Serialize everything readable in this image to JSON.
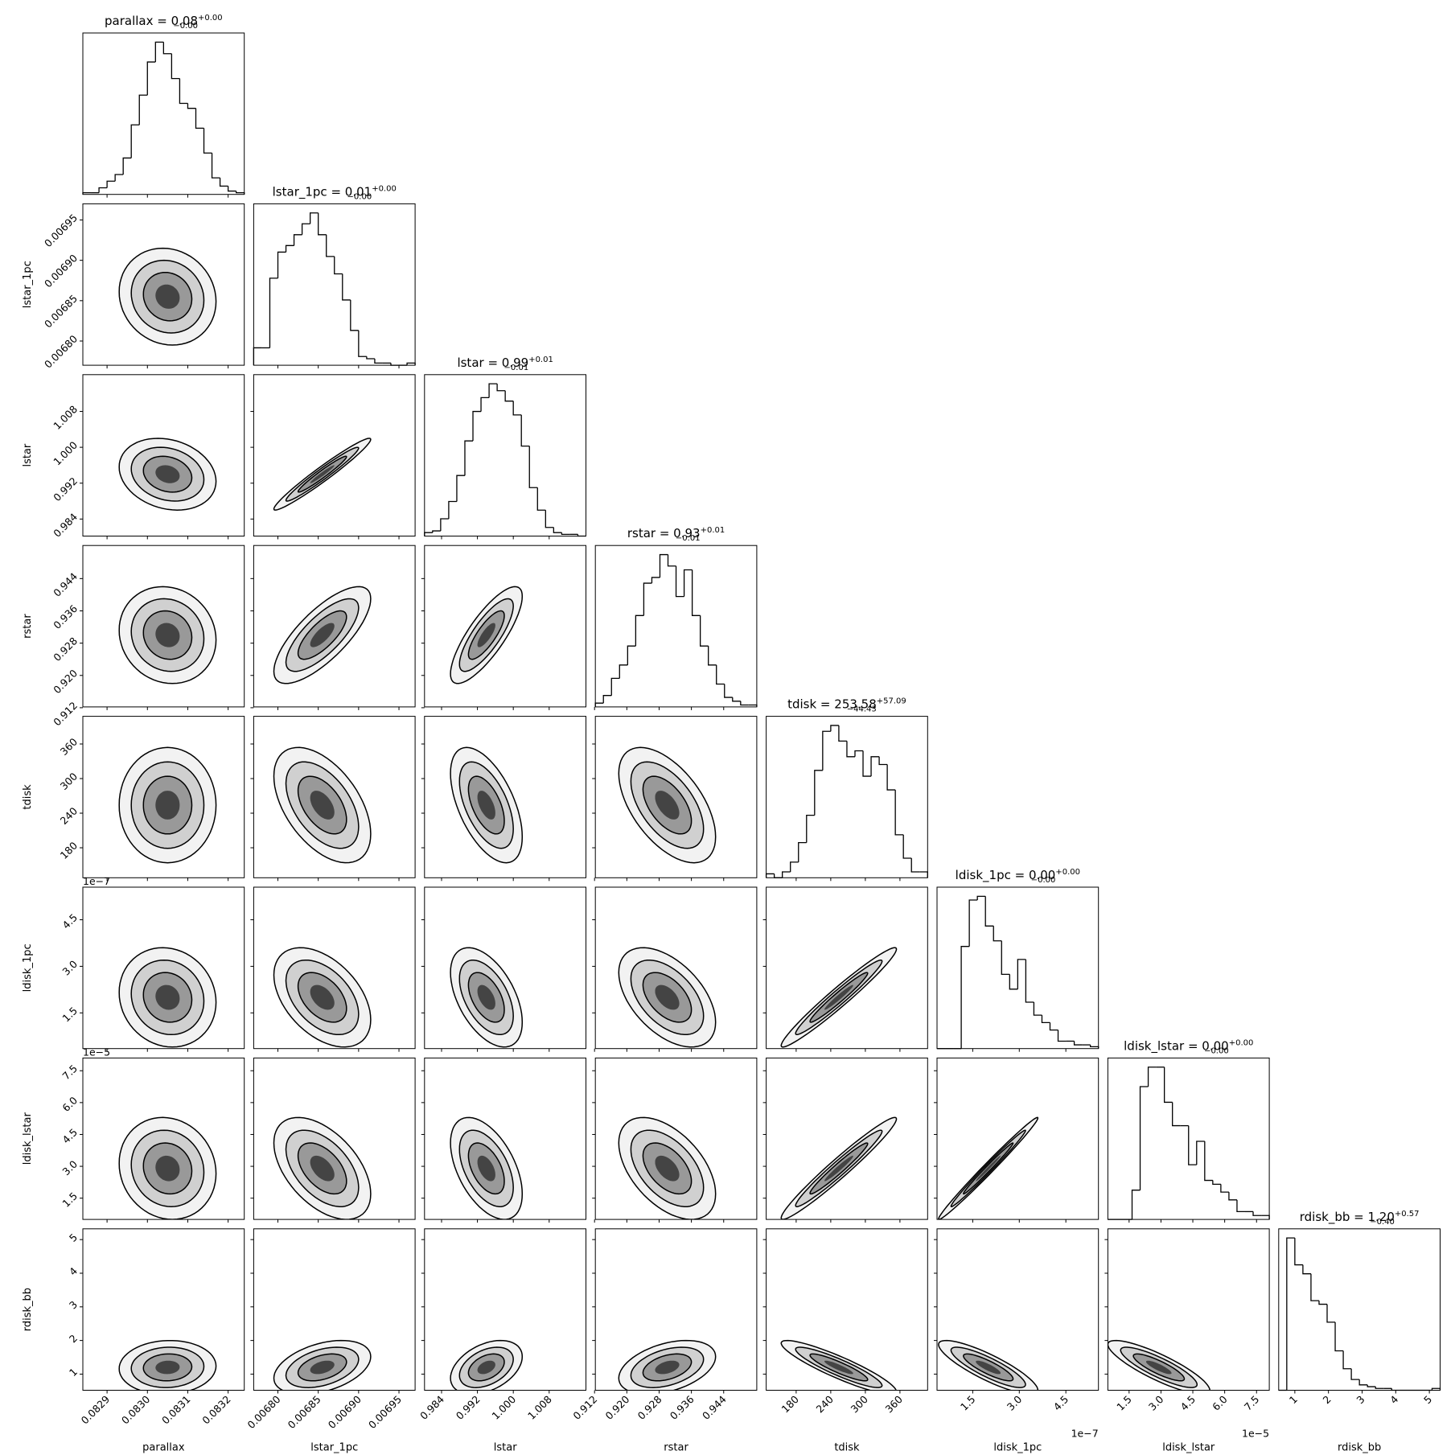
{
  "chart_data": {
    "type": "corner",
    "color": "#000000",
    "variables": [
      {
        "name": "parallax",
        "title": "parallax = 0.08",
        "plus": "+0.00",
        "minus": "−0.00",
        "lim": [
          0.08284,
          0.08324
        ],
        "ticks": [
          0.0829,
          {
            "value": 0.083,
            "label": "0.0830"
          },
          0.0831,
          0.0832
        ],
        "mean": 0.08305,
        "sd": 6e-05,
        "bins": [
          0.08284,
          0.08286,
          0.08288,
          0.0829,
          0.08292,
          0.08294,
          0.08296,
          0.08298,
          0.083,
          0.08302,
          0.08304,
          0.08306,
          0.08308,
          0.0831,
          0.08312,
          0.08314,
          0.08316,
          0.08318,
          0.0832,
          0.08322,
          0.08324
        ],
        "counts": [
          1,
          1,
          4,
          8,
          12,
          22,
          42,
          60,
          80,
          92,
          85,
          70,
          55,
          52,
          40,
          25,
          10,
          5,
          2,
          1
        ]
      },
      {
        "name": "lstar_1pc",
        "title": "lstar_1pc = 0.01",
        "plus": "+0.00",
        "minus": "−0.00",
        "lim": [
          0.00677,
          0.00697
        ],
        "ticks": [
          {
            "value": 0.0068,
            "label": "0.00680"
          },
          0.00685,
          {
            "value": 0.0069,
            "label": "0.00690"
          },
          0.00695
        ],
        "mean": 0.006855,
        "sd": 3e-05,
        "bins": [
          0.00677,
          0.00678,
          0.00679,
          0.0068,
          0.00681,
          0.00682,
          0.00683,
          0.00684,
          0.00685,
          0.00686,
          0.00687,
          0.00688,
          0.00689,
          0.0069,
          0.00691,
          0.00692,
          0.00693,
          0.00694,
          0.00695,
          0.00696,
          0.00697
        ],
        "counts": [
          8,
          8,
          40,
          52,
          55,
          60,
          65,
          70,
          60,
          50,
          42,
          30,
          16,
          4,
          3,
          1,
          1,
          0,
          0,
          1
        ]
      },
      {
        "name": "lstar",
        "title": "lstar = 0.99",
        "plus": "+0.01",
        "minus": "−0.01",
        "lim": [
          0.9802,
          1.0162
        ],
        "ticks": [
          0.984,
          0.992,
          {
            "value": 1,
            "label": "1.000"
          },
          1.008
        ],
        "mean": 0.994,
        "sd": 0.004,
        "bins": [
          0.9802,
          0.982,
          0.9838,
          0.9856,
          0.9874,
          0.9892,
          0.991,
          0.9928,
          0.9946,
          0.9964,
          0.9982,
          1.0,
          1.0018,
          1.0036,
          1.0054,
          1.0072,
          1.009,
          1.0108,
          1.0126,
          1.0144,
          1.0162
        ],
        "counts": [
          2,
          3,
          10,
          20,
          35,
          55,
          72,
          80,
          88,
          84,
          78,
          70,
          52,
          28,
          15,
          5,
          2,
          1,
          1,
          0
        ]
      },
      {
        "name": "rstar",
        "title": "rstar = 0.93",
        "plus": "+0.01",
        "minus": "−0.01",
        "lim": [
          0.9122,
          0.9522
        ],
        "ticks": [
          0.912,
          {
            "value": 0.92,
            "label": "0.920"
          },
          0.928,
          0.936,
          0.944
        ],
        "mean": 0.93,
        "sd": 0.006,
        "bins": [
          0.9122,
          0.9142,
          0.9162,
          0.9182,
          0.9202,
          0.9222,
          0.9242,
          0.9262,
          0.9282,
          0.9302,
          0.9322,
          0.9342,
          0.9362,
          0.9382,
          0.9402,
          0.9422,
          0.9442,
          0.9462,
          0.9482,
          0.9502,
          0.9522
        ],
        "counts": [
          2,
          6,
          15,
          22,
          32,
          48,
          65,
          68,
          80,
          74,
          58,
          72,
          48,
          32,
          22,
          12,
          5,
          3,
          1,
          1
        ]
      },
      {
        "name": "tdisk",
        "title": "tdisk = 253.58",
        "plus": "+57.09",
        "minus": "−44.43",
        "lim": [
          128,
          408
        ],
        "ticks": [
          180,
          240,
          300,
          360
        ],
        "mean": 254,
        "sd": 50,
        "bins": [
          128,
          142,
          156,
          170,
          184,
          198,
          212,
          226,
          240,
          254,
          268,
          282,
          296,
          310,
          324,
          338,
          352,
          366,
          380,
          394,
          408
        ],
        "counts": [
          2,
          0,
          3,
          8,
          18,
          32,
          55,
          75,
          78,
          70,
          62,
          65,
          52,
          62,
          58,
          45,
          22,
          10,
          3,
          3
        ]
      },
      {
        "name": "ldisk_1pc",
        "title": "ldisk_1pc = 0.00",
        "plus": "+0.00",
        "minus": "−0.00",
        "lim": [
          3.5e-08,
          5.55e-07
        ],
        "offset": "1e−7",
        "ticks": [
          {
            "value": 1.5e-07,
            "label": "1.5"
          },
          {
            "value": 3e-07,
            "label": "3.0"
          },
          {
            "value": 4.5e-07,
            "label": "4.5"
          }
        ],
        "mean": 2e-07,
        "sd": 8e-08,
        "bins": [
          3.5e-08,
          6.1e-08,
          8.7e-08,
          1.13e-07,
          1.39e-07,
          1.65e-07,
          1.91e-07,
          2.17e-07,
          2.43e-07,
          2.69e-07,
          2.95e-07,
          3.21e-07,
          3.47e-07,
          3.73e-07,
          3.99e-07,
          4.25e-07,
          4.51e-07,
          4.77e-07,
          5.03e-07,
          5.29e-07,
          5.55e-07
        ],
        "counts": [
          0,
          0,
          0,
          55,
          80,
          82,
          66,
          58,
          40,
          32,
          48,
          25,
          18,
          14,
          10,
          4,
          4,
          2,
          2,
          1
        ]
      },
      {
        "name": "ldisk_lstar",
        "title": "ldisk_lstar = 0.00",
        "plus": "+0.00",
        "minus": "−0.00",
        "lim": [
          5e-06,
          8.1e-05
        ],
        "offset": "1e−5",
        "ticks": [
          {
            "value": 1.5e-05,
            "label": "1.5"
          },
          {
            "value": 3e-05,
            "label": "3.0"
          },
          {
            "value": 4.5e-05,
            "label": "4.5"
          },
          {
            "value": 6e-05,
            "label": "6.0"
          },
          {
            "value": 7.5e-05,
            "label": "7.5"
          }
        ],
        "mean": 2.9e-05,
        "sd": 1.2e-05,
        "bins": [
          5e-06,
          8.8e-06,
          1.26e-05,
          1.64e-05,
          2.02e-05,
          2.4e-05,
          2.78e-05,
          3.16e-05,
          3.54e-05,
          3.92e-05,
          4.3e-05,
          4.68e-05,
          5.06e-05,
          5.44e-05,
          5.82e-05,
          6.2e-05,
          6.58e-05,
          6.96e-05,
          7.34e-05,
          7.72e-05,
          8.1e-05
        ],
        "counts": [
          0,
          0,
          0,
          15,
          68,
          78,
          78,
          60,
          48,
          48,
          28,
          40,
          20,
          18,
          14,
          10,
          4,
          4,
          2,
          2
        ]
      },
      {
        "name": "rdisk_bb",
        "title": "rdisk_bb = 1.20",
        "plus": "+0.57",
        "minus": "−0.40",
        "lim": [
          0.52,
          5.32
        ],
        "ticks": [
          1,
          2,
          3,
          4,
          5
        ],
        "mean": 1.2,
        "sd": 0.4,
        "bins": [
          0.52,
          0.76,
          1.0,
          1.24,
          1.48,
          1.72,
          1.96,
          2.2,
          2.44,
          2.68,
          2.92,
          3.16,
          3.4,
          3.64,
          3.88,
          4.12,
          4.36,
          4.6,
          4.84,
          5.08,
          5.32
        ],
        "counts": [
          0,
          85,
          70,
          65,
          50,
          48,
          38,
          22,
          12,
          6,
          3,
          2,
          1,
          1,
          0,
          0,
          0,
          0,
          0,
          1
        ]
      }
    ],
    "correlations": [
      [],
      [
        -0.1
      ],
      [
        -0.2,
        0.97
      ],
      [
        -0.1,
        0.75,
        0.8
      ],
      [
        0.0,
        -0.5,
        -0.55,
        -0.55
      ],
      [
        -0.1,
        -0.45,
        -0.5,
        -0.5,
        0.97
      ],
      [
        -0.1,
        -0.5,
        -0.5,
        -0.5,
        0.97,
        0.99
      ],
      [
        0.05,
        0.4,
        0.4,
        0.4,
        -0.9,
        -0.85,
        -0.85
      ]
    ]
  }
}
